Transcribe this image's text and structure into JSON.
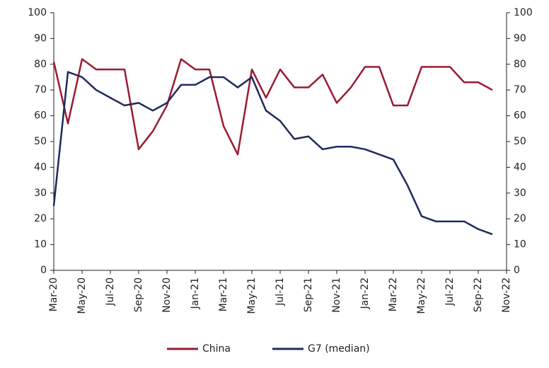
{
  "chart_data": {
    "type": "line",
    "x": [
      "Mar-20",
      "Apr-20",
      "May-20",
      "Jun-20",
      "Jul-20",
      "Aug-20",
      "Sep-20",
      "Oct-20",
      "Nov-20",
      "Dec-20",
      "Jan-21",
      "Feb-21",
      "Mar-21",
      "Apr-21",
      "May-21",
      "Jun-21",
      "Jul-21",
      "Aug-21",
      "Sep-21",
      "Oct-21",
      "Nov-21",
      "Dec-21",
      "Jan-22",
      "Feb-22",
      "Mar-22",
      "Apr-22",
      "May-22",
      "Jun-22",
      "Jul-22",
      "Aug-22",
      "Sep-22",
      "Oct-22"
    ],
    "series": [
      {
        "name": "China",
        "color": "#9b1b30",
        "values": [
          81,
          57,
          82,
          78,
          78,
          78,
          47,
          54,
          64,
          82,
          78,
          78,
          56,
          45,
          78,
          67,
          78,
          71,
          71,
          76,
          65,
          71,
          79,
          79,
          64,
          64,
          79,
          79,
          79,
          73,
          73,
          70
        ]
      },
      {
        "name": "G7 (median)",
        "color": "#1f2a5c",
        "axis": "y2",
        "values": [
          25,
          77,
          75,
          70,
          67,
          64,
          65,
          62,
          65,
          72,
          72,
          75,
          75,
          71,
          75,
          62,
          58,
          51,
          52,
          47,
          48,
          48,
          47,
          45,
          43,
          33,
          21,
          19,
          19,
          19,
          16,
          14
        ]
      }
    ],
    "xlim": [
      "Mar-20",
      "Nov-22"
    ],
    "xticks": [
      "Mar-20",
      "May-20",
      "Jul-20",
      "Sep-20",
      "Nov-20",
      "Jan-21",
      "Mar-21",
      "May-21",
      "Jul-21",
      "Sep-21",
      "Nov-21",
      "Jan-22",
      "Mar-22",
      "May-22",
      "Jul-22",
      "Sep-22",
      "Nov-22"
    ],
    "ylim": [
      0,
      100
    ],
    "yticks": [
      0,
      10,
      20,
      30,
      40,
      50,
      60,
      70,
      80,
      90,
      100
    ],
    "y2lim": [
      0,
      100
    ],
    "y2ticks": [
      0,
      10,
      20,
      30,
      40,
      50,
      60,
      70,
      80,
      90,
      100
    ],
    "legend": "bottom"
  }
}
